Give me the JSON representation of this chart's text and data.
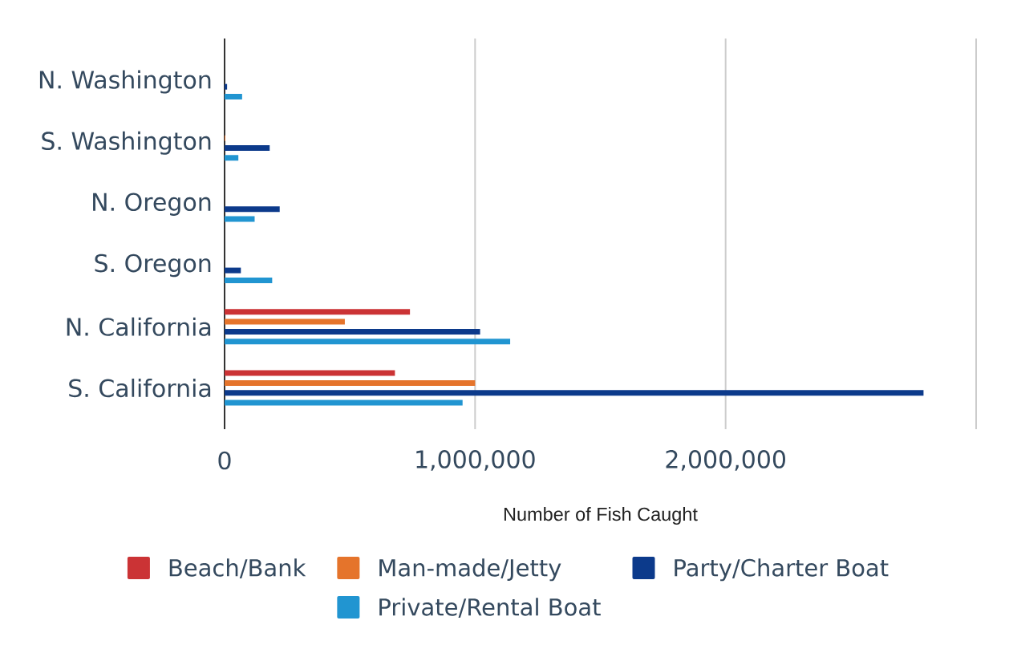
{
  "chart_data": {
    "type": "bar",
    "orientation": "horizontal",
    "xlabel": "Number of Fish Caught",
    "categories": [
      "N. Washington",
      "S. Washington",
      "N. Oregon",
      "S. Oregon",
      "N. California",
      "S. California"
    ],
    "series": [
      {
        "name": "Beach/Bank",
        "color": "#cb3335",
        "values": [
          null,
          null,
          null,
          null,
          740000,
          680000
        ]
      },
      {
        "name": "Man-made/Jetty",
        "color": "#e5742b",
        "values": [
          null,
          3000,
          null,
          null,
          480000,
          1000000
        ]
      },
      {
        "name": "Party/Charter Boat",
        "color": "#0c3a8b",
        "values": [
          10000,
          180000,
          220000,
          65000,
          1020000,
          2790000
        ]
      },
      {
        "name": "Private/Rental Boat",
        "color": "#2195d1",
        "values": [
          70000,
          55000,
          120000,
          190000,
          1140000,
          950000
        ]
      }
    ],
    "xlim": [
      0,
      3000000
    ],
    "xticks": [
      0,
      {
        "value": 1000000,
        "label": "1,000,000"
      },
      {
        "value": 2000000,
        "label": "2,000,000"
      },
      {
        "value": 3000000,
        "label": null
      }
    ],
    "grid": "x",
    "legend": "bottom"
  }
}
